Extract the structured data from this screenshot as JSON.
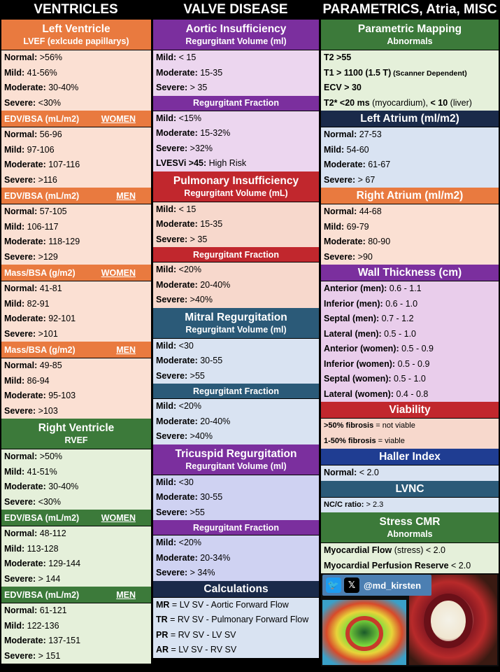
{
  "headers": {
    "c1": "VENTRICLES",
    "c2": "VALVE DISEASE",
    "c3": "PARAMETRICS, Atria, MISC"
  },
  "lv": {
    "title": "Left Ventricle",
    "sub": "LVEF (exlcude papillarys)",
    "rows": [
      [
        "Normal:",
        " >56%"
      ],
      [
        "Mild:",
        " 41-56%"
      ],
      [
        "Moderate:",
        " 30-40%"
      ],
      [
        "Severe:",
        " <30%"
      ]
    ]
  },
  "lv_edv_w": {
    "label": "EDV/BSA (mL/m2)",
    "tag": "WOMEN",
    "rows": [
      [
        "Normal:",
        " 56-96"
      ],
      [
        "Mild:",
        " 97-106"
      ],
      [
        "Moderate:",
        " 107-116"
      ],
      [
        "Severe:",
        " >116"
      ]
    ]
  },
  "lv_edv_m": {
    "label": "EDV/BSA (mL/m2)",
    "tag": "MEN",
    "rows": [
      [
        "Normal:",
        " 57-105"
      ],
      [
        "Mild:",
        " 106-117"
      ],
      [
        "Moderate:",
        " 118-129"
      ],
      [
        "Severe:",
        " >129"
      ]
    ]
  },
  "lv_mass_w": {
    "label": "Mass/BSA (g/m2)",
    "tag": "WOMEN",
    "rows": [
      [
        "Normal:",
        " 41-81"
      ],
      [
        "Mild:",
        " 82-91"
      ],
      [
        "Moderate:",
        " 92-101"
      ],
      [
        "Severe:",
        " >101"
      ]
    ]
  },
  "lv_mass_m": {
    "label": "Mass/BSA (g/m2)",
    "tag": "MEN",
    "rows": [
      [
        "Normal:",
        " 49-85"
      ],
      [
        "Mild:",
        " 86-94"
      ],
      [
        "Moderate:",
        " 95-103"
      ],
      [
        "Severe:",
        " >103"
      ]
    ]
  },
  "rv": {
    "title": "Right Ventricle",
    "sub": "RVEF",
    "rows": [
      [
        "Normal:",
        " >50%"
      ],
      [
        "Mild:",
        " 41-51%"
      ],
      [
        "Moderate:",
        " 30-40%"
      ],
      [
        "Severe:",
        " <30%"
      ]
    ]
  },
  "rv_edv_w": {
    "label": "EDV/BSA (mL/m2)",
    "tag": "WOMEN",
    "rows": [
      [
        "Normal:",
        " 48-112"
      ],
      [
        "Mild:",
        " 113-128"
      ],
      [
        "Moderate:",
        " 129-144"
      ],
      [
        "Severe:",
        " > 144"
      ]
    ]
  },
  "rv_edv_m": {
    "label": "EDV/BSA (mL/m2)",
    "tag": "MEN",
    "rows": [
      [
        "Normal:",
        " 61-121"
      ],
      [
        "Mild:",
        " 122-136"
      ],
      [
        "Moderate:",
        " 137-151"
      ],
      [
        "Severe:",
        " > 151"
      ]
    ]
  },
  "ai": {
    "title": "Aortic Insufficiency",
    "sub": "Regurgitant Volume (ml)",
    "rows": [
      [
        "Mild:",
        " < 15"
      ],
      [
        "Moderate:",
        "  15-35"
      ],
      [
        "Severe:",
        " > 35"
      ]
    ],
    "rf": "Regurgitant Fraction",
    "rf_rows": [
      [
        "Mild:",
        " <15%"
      ],
      [
        "Moderate:",
        " 15-32%"
      ],
      [
        "Severe:",
        " >32%"
      ],
      [
        "LVESVi >45:",
        "  High Risk"
      ]
    ]
  },
  "pi": {
    "title": "Pulmonary Insufficiency",
    "sub": "Regurgitant Volume (mL)",
    "rows": [
      [
        "Mild:",
        " < 15"
      ],
      [
        "Moderate:",
        "  15-35"
      ],
      [
        "Severe:",
        " > 35"
      ]
    ],
    "rf": "Regurgitant Fraction",
    "rf_rows": [
      [
        "Mild:",
        " <20%"
      ],
      [
        "Moderate:",
        " 20-40%"
      ],
      [
        "Severe:",
        " >40%"
      ]
    ]
  },
  "mr": {
    "title": "Mitral Regurgitation",
    "sub": "Regurgitant Volume (ml)",
    "rows": [
      [
        "Mild:",
        " <30"
      ],
      [
        "Moderate:",
        " 30-55"
      ],
      [
        "Severe:",
        " >55"
      ]
    ],
    "rf": "Regurgitant Fraction",
    "rf_rows": [
      [
        "Mild:",
        " <20%"
      ],
      [
        "Moderate:",
        " 20-40%"
      ],
      [
        "Severe:",
        " >40%"
      ]
    ]
  },
  "tr": {
    "title": "Tricuspid Regurgitation",
    "sub": "Regurgitant Volume (ml)",
    "rows": [
      [
        "Mild:",
        " <30"
      ],
      [
        "Moderate:",
        " 30-55"
      ],
      [
        "Severe:",
        " >55"
      ]
    ],
    "rf": "Regurgitant Fraction",
    "rf_rows": [
      [
        "Mild:",
        " <20%"
      ],
      [
        "Moderate:",
        " 20-34%"
      ],
      [
        "Severe:",
        " > 34%"
      ]
    ]
  },
  "calc": {
    "title": "Calculations",
    "rows": [
      [
        "MR",
        " = LV SV - Aortic Forward Flow"
      ],
      [
        "TR",
        " = RV SV - Pulmonary Forward Flow"
      ],
      [
        "PR",
        " = RV SV - LV SV"
      ],
      [
        "AR",
        " = LV SV - RV SV"
      ]
    ]
  },
  "pm": {
    "title": "Parametric Mapping",
    "sub": "Abnormals",
    "rows": [
      {
        "b": "T2 >55",
        "t": "",
        "s": ""
      },
      {
        "b": "T1 > 1100 (1.5 T)",
        "t": "",
        "s": " (Scanner Dependent)"
      },
      {
        "b": "ECV > 30",
        "t": "",
        "s": ""
      },
      {
        "b": "T2* <20 ms",
        "t": " (myocardium), ",
        "b2": "< 10",
        "t2": " (liver)"
      }
    ]
  },
  "la": {
    "title": "Left Atrium (ml/m2)",
    "rows": [
      [
        "Normal:",
        " 27-53"
      ],
      [
        "Mild:",
        " 54-60"
      ],
      [
        "Moderate:",
        " 61-67"
      ],
      [
        "Severe:",
        " > 67"
      ]
    ]
  },
  "ra": {
    "title": "Right Atrium (ml/m2)",
    "rows": [
      [
        "Normal:",
        " 44-68"
      ],
      [
        "Mild:",
        " 69-79"
      ],
      [
        "Moderate:",
        " 80-90"
      ],
      [
        "Severe:",
        " >90"
      ]
    ]
  },
  "wt": {
    "title": "Wall Thickness (cm)",
    "rows": [
      [
        "Anterior (men):",
        " 0.6 - 1.1"
      ],
      [
        "Inferior (men):",
        " 0.6 - 1.0"
      ],
      [
        "Septal (men):",
        " 0.7 - 1.2"
      ],
      [
        "Lateral (men):",
        " 0.5 - 1.0"
      ],
      [
        "Anterior (women):",
        " 0.5 - 0.9"
      ],
      [
        "Inferior (women):",
        " 0.5 - 0.9"
      ],
      [
        "Septal (women):",
        " 0.5 - 1.0"
      ],
      [
        "Lateral (women):",
        " 0.4 - 0.8"
      ]
    ]
  },
  "via": {
    "title": "Viability",
    "rows": [
      [
        ">50% fibrosis",
        " = not viable"
      ],
      [
        "1-50% fibrosis",
        " = viable"
      ]
    ]
  },
  "haller": {
    "title": "Haller Index",
    "rows": [
      [
        "Normal:",
        " < 2.0"
      ]
    ]
  },
  "lvnc": {
    "title": "LVNC",
    "rows": [
      [
        "NC/C ratio:",
        " > 2.3"
      ]
    ]
  },
  "stress": {
    "title": "Stress CMR",
    "sub": "Abnormals",
    "rows": [
      [
        "Myocardial Flow",
        " (stress)  < 2.0"
      ],
      [
        "Myocardial Perfusion Reserve",
        " < 2.0"
      ]
    ]
  },
  "social": {
    "handle": "@md_kirsten",
    "icons": [
      "twitter-bird-icon",
      "x-logo-icon"
    ]
  },
  "colors": {
    "orange": "#e97a3f",
    "purple": "#7b2f9e",
    "red": "#c1272d",
    "blue": "#2b5a78",
    "navy": "#1a2a4a",
    "green": "#3c7a3a",
    "royal": "#1f3d92"
  }
}
